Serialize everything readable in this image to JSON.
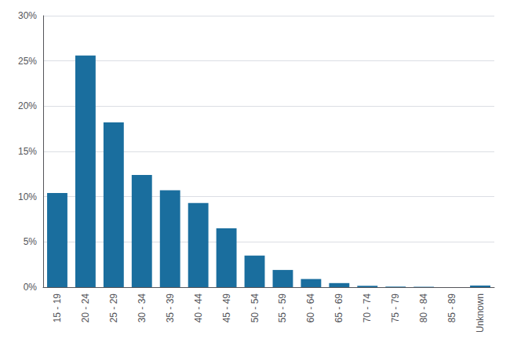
{
  "chart_data": {
    "type": "bar",
    "categories": [
      "15 - 19",
      "20 - 24",
      "25 - 29",
      "30 - 34",
      "35 - 39",
      "40 - 44",
      "45 - 49",
      "50 - 54",
      "55 - 59",
      "60 - 64",
      "65 - 69",
      "70 - 74",
      "75 - 79",
      "80 - 84",
      "85 - 89",
      "Unknown"
    ],
    "values": [
      10.4,
      25.6,
      18.2,
      12.4,
      10.7,
      9.3,
      6.5,
      3.5,
      1.9,
      0.9,
      0.45,
      0.15,
      0.06,
      0.04,
      0.0,
      0.18
    ],
    "color": "#1A6E9E",
    "ylim": [
      0,
      30
    ],
    "yticks": [
      {
        "value": 0,
        "label": "0%"
      },
      {
        "value": 5,
        "label": "5%"
      },
      {
        "value": 10,
        "label": "10%"
      },
      {
        "value": 15,
        "label": "15%"
      },
      {
        "value": 20,
        "label": "20%"
      },
      {
        "value": 25,
        "label": "25%"
      },
      {
        "value": 30,
        "label": "30%"
      }
    ],
    "grid": true
  }
}
